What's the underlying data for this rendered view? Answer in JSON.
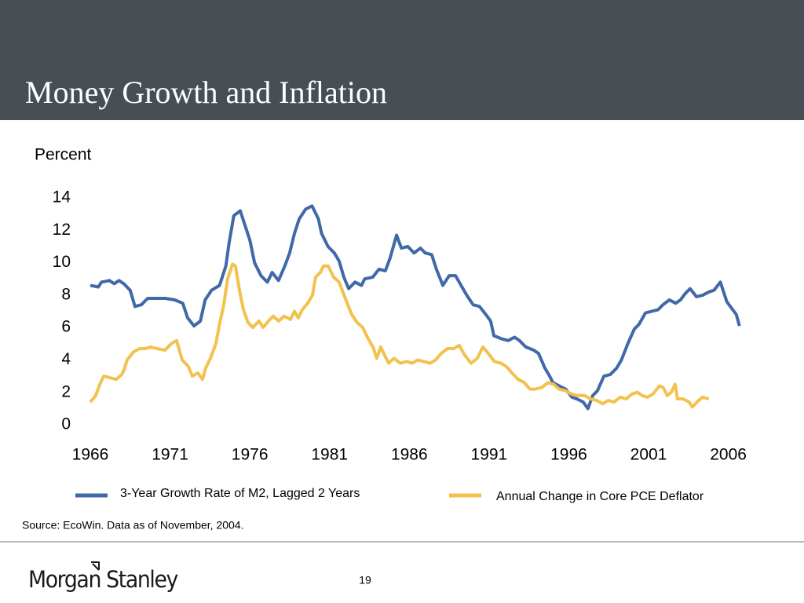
{
  "chart_data": {
    "type": "line",
    "title": "Money Growth and Inflation",
    "ylabel": "Percent",
    "xlim": [
      1966,
      2007.2
    ],
    "xticks": [
      1966,
      1971,
      1976,
      1981,
      1986,
      1991,
      1996,
      2001,
      2006
    ],
    "ylim": [
      0,
      14
    ],
    "yticks": [
      0,
      2,
      4,
      6,
      8,
      10,
      12,
      14
    ],
    "grid": false,
    "series": [
      {
        "name": "3-Year Growth Rate of M2, Lagged 2 Years",
        "color": "#4169a8",
        "x": [
          1966.0,
          1966.5,
          1966.7,
          1967.2,
          1967.5,
          1967.8,
          1968.1,
          1968.5,
          1968.8,
          1969.2,
          1969.6,
          1970.2,
          1970.7,
          1971.3,
          1971.8,
          1972.1,
          1972.5,
          1972.9,
          1973.2,
          1973.6,
          1974.1,
          1974.5,
          1974.7,
          1975.0,
          1975.4,
          1975.7,
          1976.0,
          1976.3,
          1976.7,
          1977.1,
          1977.4,
          1977.8,
          1978.2,
          1978.5,
          1978.8,
          1979.1,
          1979.5,
          1979.9,
          1980.3,
          1980.5,
          1980.9,
          1981.3,
          1981.6,
          1981.9,
          1982.2,
          1982.6,
          1983.0,
          1983.2,
          1983.7,
          1984.1,
          1984.5,
          1984.8,
          1985.2,
          1985.5,
          1985.9,
          1986.3,
          1986.7,
          1987.0,
          1987.4,
          1987.7,
          1988.1,
          1988.5,
          1988.9,
          1989.3,
          1989.6,
          1990.0,
          1990.4,
          1990.8,
          1991.1,
          1991.3,
          1991.8,
          1992.2,
          1992.6,
          1992.9,
          1993.3,
          1993.8,
          1994.1,
          1994.5,
          1994.8,
          1995.0,
          1995.4,
          1995.8,
          1996.2,
          1996.5,
          1996.9,
          1997.2,
          1997.5,
          1997.8,
          1998.2,
          1998.6,
          1999.0,
          1999.3,
          1999.7,
          2000.1,
          2000.4,
          2000.8,
          2001.2,
          2001.6,
          2001.9,
          2002.3,
          2002.7,
          2003.0,
          2003.3,
          2003.6,
          2004.0,
          2004.4,
          2004.8,
          2005.1,
          2005.5,
          2005.9,
          2006.2,
          2006.5,
          2006.7
        ],
        "values": [
          8.6,
          8.5,
          8.8,
          8.9,
          8.7,
          8.9,
          8.7,
          8.3,
          7.3,
          7.4,
          7.8,
          7.8,
          7.8,
          7.7,
          7.5,
          6.6,
          6.1,
          6.4,
          7.7,
          8.3,
          8.6,
          9.8,
          11.2,
          12.9,
          13.2,
          12.3,
          11.4,
          10.0,
          9.2,
          8.8,
          9.4,
          8.9,
          9.8,
          10.6,
          11.8,
          12.7,
          13.3,
          13.5,
          12.7,
          11.8,
          11.0,
          10.6,
          10.1,
          9.1,
          8.4,
          8.8,
          8.6,
          9.0,
          9.1,
          9.6,
          9.5,
          10.3,
          11.7,
          10.9,
          11.0,
          10.6,
          10.9,
          10.6,
          10.5,
          9.6,
          8.6,
          9.2,
          9.2,
          8.5,
          8.0,
          7.4,
          7.3,
          6.8,
          6.4,
          5.5,
          5.3,
          5.2,
          5.4,
          5.2,
          4.8,
          4.6,
          4.4,
          3.5,
          3.0,
          2.6,
          2.4,
          2.2,
          1.7,
          1.6,
          1.4,
          1.0,
          1.8,
          2.1,
          3.0,
          3.1,
          3.5,
          4.0,
          5.0,
          5.9,
          6.2,
          6.9,
          7.0,
          7.1,
          7.4,
          7.7,
          7.5,
          7.7,
          8.1,
          8.4,
          7.9,
          8.0,
          8.2,
          8.3,
          8.8,
          7.6,
          7.2,
          6.8,
          6.1
        ]
      },
      {
        "name": "Annual Change in Core PCE Deflator",
        "color": "#f2c14e",
        "x": [
          1966.0,
          1966.34,
          1966.64,
          1966.84,
          1967.23,
          1967.62,
          1967.97,
          1968.12,
          1968.31,
          1968.71,
          1969.1,
          1969.44,
          1969.79,
          1970.18,
          1970.68,
          1971.07,
          1971.41,
          1971.76,
          1972.15,
          1972.4,
          1972.74,
          1973.04,
          1973.23,
          1973.53,
          1973.87,
          1974.12,
          1974.37,
          1974.61,
          1974.91,
          1975.1,
          1975.35,
          1975.6,
          1975.89,
          1976.19,
          1976.58,
          1976.83,
          1977.17,
          1977.47,
          1977.81,
          1978.15,
          1978.55,
          1978.8,
          1979.04,
          1979.29,
          1979.63,
          1979.93,
          1980.12,
          1980.42,
          1980.62,
          1980.91,
          1981.26,
          1981.6,
          1981.99,
          1982.39,
          1982.73,
          1983.08,
          1983.37,
          1983.72,
          1983.96,
          1984.21,
          1984.45,
          1984.7,
          1985.04,
          1985.44,
          1985.83,
          1986.18,
          1986.52,
          1986.91,
          1987.31,
          1987.65,
          1988.0,
          1988.39,
          1988.78,
          1989.13,
          1989.47,
          1989.87,
          1990.26,
          1990.61,
          1990.95,
          1991.34,
          1991.74,
          1992.08,
          1992.43,
          1992.82,
          1993.21,
          1993.56,
          1993.9,
          1994.3,
          1994.69,
          1995.04,
          1995.38,
          1995.77,
          1996.17,
          1996.51,
          1997.0,
          1997.35,
          1997.74,
          1998.13,
          1998.48,
          1998.82,
          1999.22,
          1999.61,
          1999.96,
          2000.3,
          2000.6,
          2000.94,
          2001.28,
          2001.68,
          2001.92,
          2002.17,
          2002.42,
          2002.66,
          2002.81,
          2003.15,
          2003.55,
          2003.74,
          2004.14,
          2004.38,
          2004.78
        ],
        "values": [
          1.4,
          1.8,
          2.6,
          3.0,
          2.9,
          2.8,
          3.1,
          3.4,
          4.0,
          4.5,
          4.7,
          4.7,
          4.8,
          4.7,
          4.6,
          5.0,
          5.2,
          4.0,
          3.6,
          3.0,
          3.2,
          2.8,
          3.5,
          4.1,
          5.0,
          6.3,
          7.4,
          9.0,
          9.9,
          9.8,
          8.3,
          7.1,
          6.3,
          6.0,
          6.4,
          6.0,
          6.4,
          6.7,
          6.4,
          6.7,
          6.5,
          7.0,
          6.6,
          7.1,
          7.5,
          8.0,
          9.1,
          9.4,
          9.8,
          9.8,
          9.1,
          8.8,
          7.8,
          6.8,
          6.3,
          6.0,
          5.4,
          4.8,
          4.1,
          4.8,
          4.3,
          3.8,
          4.1,
          3.8,
          3.9,
          3.8,
          4.0,
          3.9,
          3.8,
          4.0,
          4.4,
          4.7,
          4.7,
          4.9,
          4.3,
          3.8,
          4.1,
          4.8,
          4.4,
          3.9,
          3.8,
          3.6,
          3.2,
          2.8,
          2.6,
          2.2,
          2.2,
          2.3,
          2.6,
          2.5,
          2.2,
          2.1,
          1.9,
          1.8,
          1.8,
          1.6,
          1.5,
          1.3,
          1.5,
          1.4,
          1.7,
          1.6,
          1.9,
          2.0,
          1.8,
          1.7,
          1.9,
          2.4,
          2.3,
          1.8,
          2.0,
          2.5,
          1.6,
          1.6,
          1.4,
          1.1,
          1.5,
          1.7,
          1.6
        ]
      }
    ]
  },
  "source": "Source:   EcoWin.  Data as of November, 2004.",
  "footer": {
    "logo": "Morgan Stanley",
    "page": "19"
  }
}
